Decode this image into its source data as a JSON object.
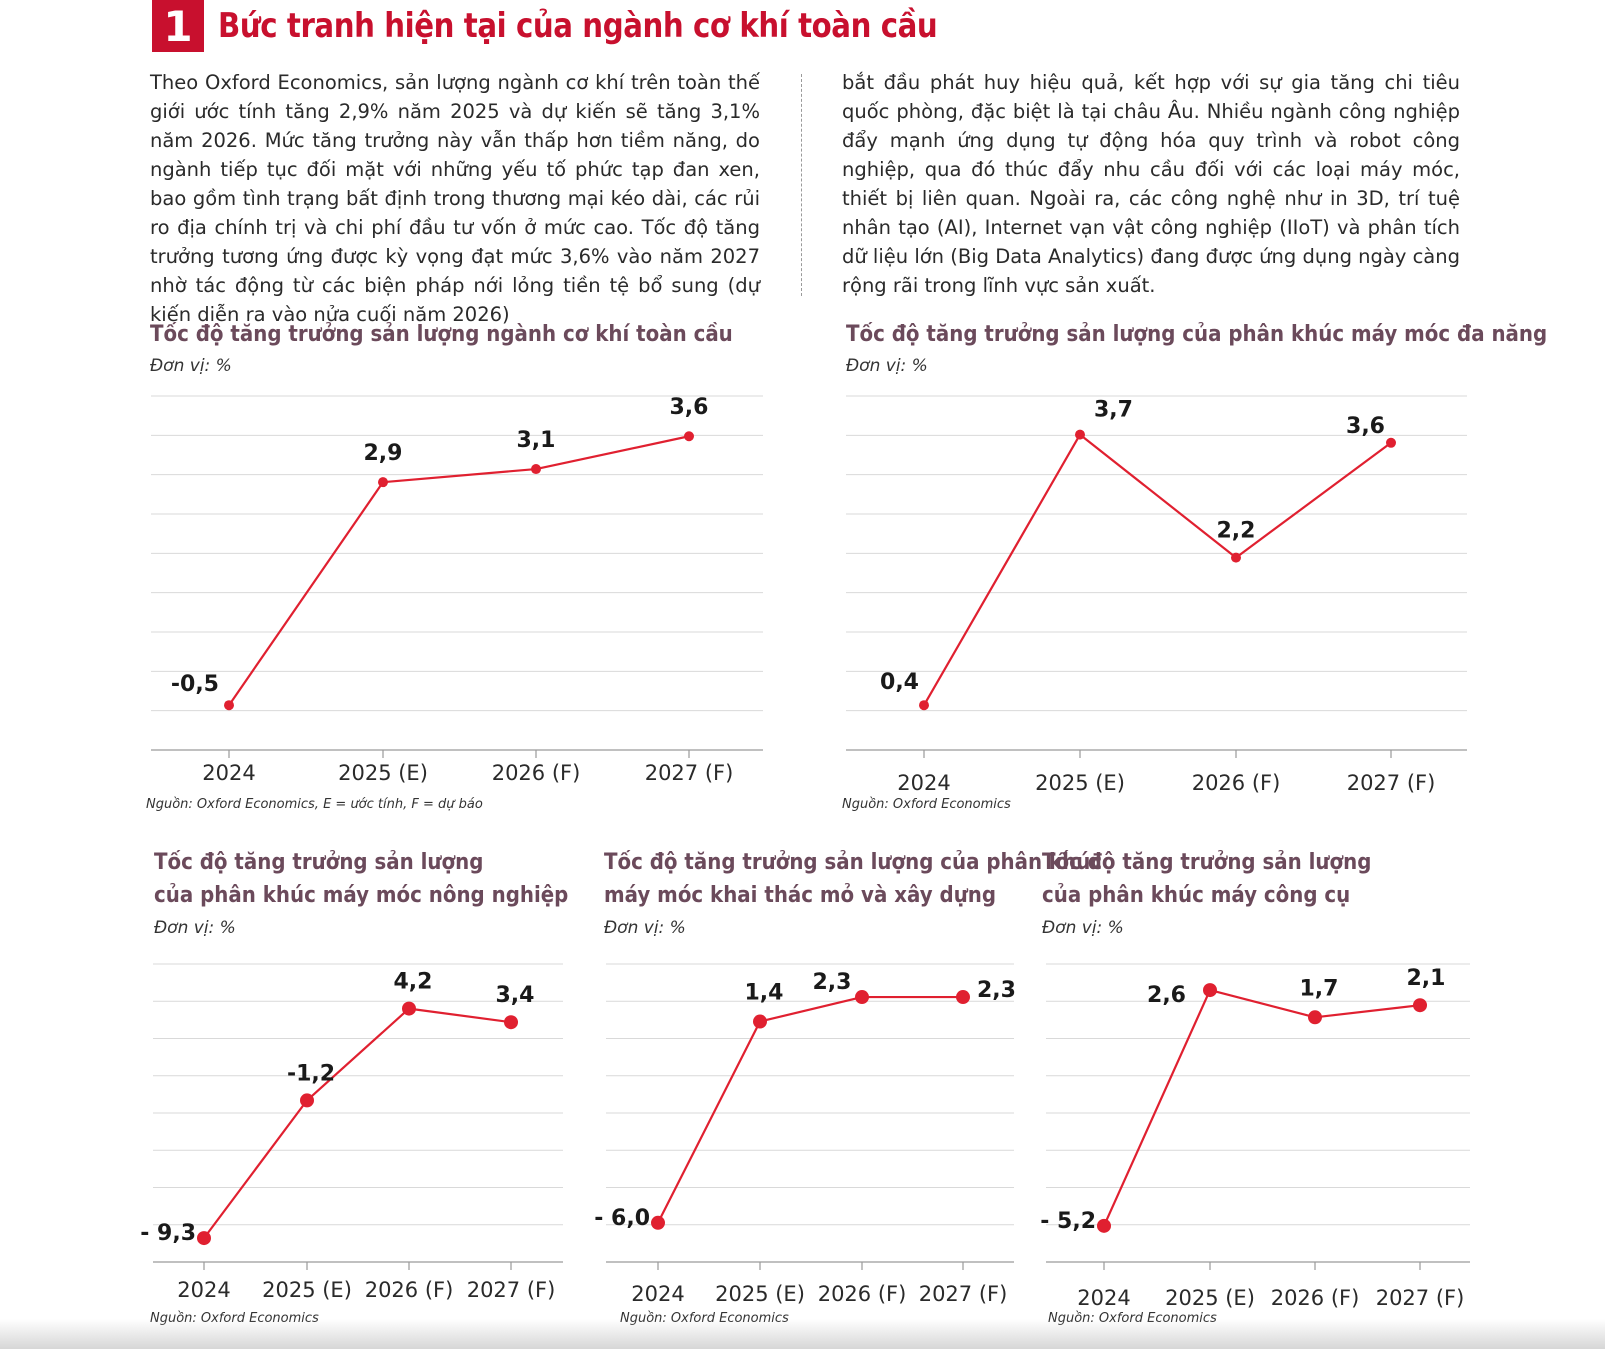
{
  "section": {
    "number": "1",
    "title": "Bức tranh hiện tại của ngành cơ khí toàn cầu"
  },
  "intro": {
    "left": "Theo Oxford Economics, sản lượng ngành cơ khí trên toàn thế giới ước tính tăng 2,9% năm 2025 và dự kiến sẽ tăng 3,1% năm 2026. Mức tăng trưởng này vẫn thấp hơn tiềm năng, do ngành tiếp tục đối mặt với những yếu tố phức tạp đan xen, bao gồm tình trạng bất định trong thương mại kéo dài, các rủi ro địa chính trị và chi phí đầu tư vốn ở mức cao. Tốc độ tăng trưởng tương ứng được kỳ vọng đạt mức 3,6% vào năm 2027 nhờ tác động từ các biện pháp nới lỏng tiền tệ bổ sung (dự kiến diễn ra vào nửa cuối năm 2026)",
    "right": "bắt đầu phát huy hiệu quả, kết hợp với sự gia tăng chi tiêu quốc phòng, đặc biệt là tại châu Âu. Nhiều ngành công nghiệp đẩy mạnh ứng dụng tự động hóa quy trình và robot công nghiệp, qua đó thúc đẩy nhu cầu đối với các loại máy móc, thiết bị liên quan. Ngoài ra, các công nghệ như in 3D, trí tuệ nhân tạo (AI), Internet vạn vật công nghiệp (IIoT) và phân tích dữ liệu lớn (Big Data Analytics) đang được ứng dụng ngày càng rộng rãi trong lĩnh vực sản xuất."
  },
  "colors": {
    "accent": "#c8102e",
    "line": "#e02030",
    "chart_title": "#6b4a5b",
    "grid": "#d9d9d9",
    "axis": "#9a9a9a"
  },
  "chart_data": [
    {
      "type": "line",
      "title": "Tốc độ tăng trưởng sản lượng ngành cơ khí toàn cầu",
      "unit": "Đơn vị: %",
      "categories": [
        "2024",
        "2025 (E)",
        "2026 (F)",
        "2027 (F)"
      ],
      "values": [
        -0.5,
        2.9,
        3.1,
        3.6
      ],
      "labels": [
        "-0,5",
        "2,9",
        "3,1",
        "3,6"
      ],
      "ylim": [
        -1.0,
        4.0
      ],
      "grid": true,
      "source": "Nguồn: Oxford Economics, E = ước tính, F = dự báo"
    },
    {
      "type": "line",
      "title": "Tốc độ tăng trưởng sản lượng của phân khúc máy móc đa năng",
      "unit": "Đơn vị: %",
      "categories": [
        "2024",
        "2025 (E)",
        "2026 (F)",
        "2027 (F)"
      ],
      "values": [
        0.4,
        3.7,
        2.2,
        3.6
      ],
      "labels": [
        "0,4",
        "3,7",
        "2,2",
        "3,6"
      ],
      "ylim": [
        0.0,
        4.0
      ],
      "grid": true,
      "source": "Nguồn: Oxford Economics"
    },
    {
      "type": "line",
      "title": [
        "Tốc độ tăng trưởng sản lượng",
        "của phân khúc máy móc nông nghiệp"
      ],
      "unit": "Đơn vị: %",
      "categories": [
        "2024",
        "2025 (E)",
        "2026 (F)",
        "2027 (F)"
      ],
      "values": [
        -9.3,
        -1.2,
        4.2,
        3.4
      ],
      "labels": [
        "- 9,3",
        "-1,2",
        "4,2",
        "3,4"
      ],
      "ylim": [
        -10.0,
        6.0
      ],
      "grid": true,
      "source": "Nguồn: Oxford Economics"
    },
    {
      "type": "line",
      "title": [
        "Tốc độ tăng trưởng sản lượng của phân khúc",
        "máy móc khai thác mỏ và xây dựng"
      ],
      "unit": "Đơn vị: %",
      "categories": [
        "2024",
        "2025 (E)",
        "2026 (F)",
        "2027 (F)"
      ],
      "values": [
        -6.0,
        1.4,
        2.3,
        2.3
      ],
      "labels": [
        "- 6,0",
        "1,4",
        "2,3",
        "2,3"
      ],
      "ylim": [
        -7.0,
        3.0
      ],
      "grid": true,
      "source": "Nguồn: Oxford Economics"
    },
    {
      "type": "line",
      "title": [
        "Tốc độ tăng trưởng sản lượng",
        "của phân khúc máy công cụ"
      ],
      "unit": "Đơn vị: %",
      "categories": [
        "2024",
        "2025 (E)",
        "2026 (F)",
        "2027 (F)"
      ],
      "values": [
        -5.2,
        2.6,
        1.7,
        2.1
      ],
      "labels": [
        "- 5,2",
        "2,6",
        "1,7",
        "2,1"
      ],
      "ylim": [
        -6.0,
        3.0
      ],
      "grid": true,
      "source": "Nguồn: Oxford Economics"
    }
  ]
}
